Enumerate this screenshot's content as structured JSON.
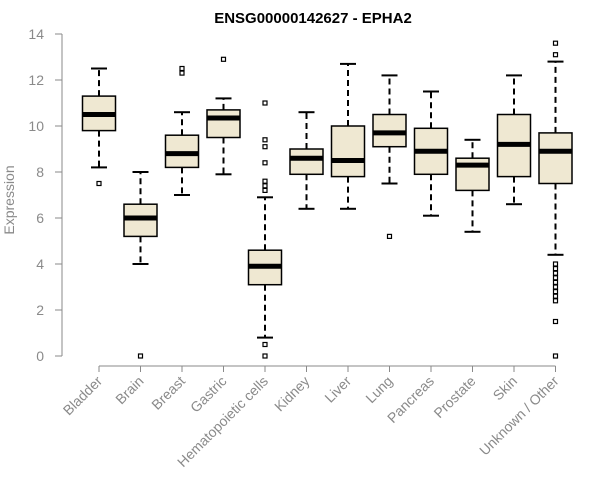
{
  "chart_data": {
    "type": "box",
    "title": "ENSG00000142627 - EPHA2",
    "xlabel": "",
    "ylabel": "Expression",
    "ylim": [
      0,
      14
    ],
    "yticks": [
      0,
      2,
      4,
      6,
      8,
      10,
      12,
      14
    ],
    "grid": false,
    "legend": "none",
    "colors": {
      "box_fill": "#efe8d2",
      "box_stroke": "#000000",
      "axis": "#8a8a8a",
      "title": "#000000"
    },
    "categories": [
      "Bladder",
      "Brain",
      "Breast",
      "Gastric",
      "Hematopoietic cells",
      "Kidney",
      "Liver",
      "Lung",
      "Pancreas",
      "Prostate",
      "Skin",
      "Unknown / Other"
    ],
    "boxes": [
      {
        "category": "Bladder",
        "whisker_low": 8.2,
        "q1": 9.8,
        "median": 10.5,
        "q3": 11.3,
        "whisker_high": 12.5,
        "outliers": [
          7.5
        ]
      },
      {
        "category": "Brain",
        "whisker_low": 4.0,
        "q1": 5.2,
        "median": 6.0,
        "q3": 6.6,
        "whisker_high": 8.0,
        "outliers": [
          0.0
        ]
      },
      {
        "category": "Breast",
        "whisker_low": 7.0,
        "q1": 8.2,
        "median": 8.8,
        "q3": 9.6,
        "whisker_high": 10.6,
        "outliers": [
          12.3,
          12.5
        ]
      },
      {
        "category": "Gastric",
        "whisker_low": 7.9,
        "q1": 9.5,
        "median": 10.35,
        "q3": 10.7,
        "whisker_high": 11.2,
        "outliers": [
          12.9
        ]
      },
      {
        "category": "Hematopoietic cells",
        "whisker_low": 0.8,
        "q1": 3.1,
        "median": 3.9,
        "q3": 4.6,
        "whisker_high": 6.9,
        "outliers": [
          0.0,
          0.5,
          7.2,
          7.4,
          7.6,
          8.4,
          9.1,
          9.4,
          11.0
        ]
      },
      {
        "category": "Kidney",
        "whisker_low": 6.4,
        "q1": 7.9,
        "median": 8.6,
        "q3": 9.0,
        "whisker_high": 10.6,
        "outliers": []
      },
      {
        "category": "Liver",
        "whisker_low": 6.4,
        "q1": 7.8,
        "median": 8.5,
        "q3": 10.0,
        "whisker_high": 12.7,
        "outliers": []
      },
      {
        "category": "Lung",
        "whisker_low": 7.5,
        "q1": 9.1,
        "median": 9.7,
        "q3": 10.5,
        "whisker_high": 12.2,
        "outliers": [
          5.2
        ]
      },
      {
        "category": "Pancreas",
        "whisker_low": 6.1,
        "q1": 7.9,
        "median": 8.9,
        "q3": 9.9,
        "whisker_high": 11.5,
        "outliers": []
      },
      {
        "category": "Prostate",
        "whisker_low": 5.4,
        "q1": 7.2,
        "median": 8.3,
        "q3": 8.6,
        "whisker_high": 9.4,
        "outliers": []
      },
      {
        "category": "Skin",
        "whisker_low": 6.6,
        "q1": 7.8,
        "median": 9.2,
        "q3": 10.5,
        "whisker_high": 12.2,
        "outliers": []
      },
      {
        "category": "Unknown / Other",
        "whisker_low": 4.4,
        "q1": 7.5,
        "median": 8.9,
        "q3": 9.7,
        "whisker_high": 12.8,
        "outliers": [
          0.0,
          1.5,
          2.4,
          2.6,
          2.8,
          3.0,
          3.2,
          3.4,
          3.6,
          3.8,
          4.0,
          13.1,
          13.6
        ]
      }
    ]
  }
}
